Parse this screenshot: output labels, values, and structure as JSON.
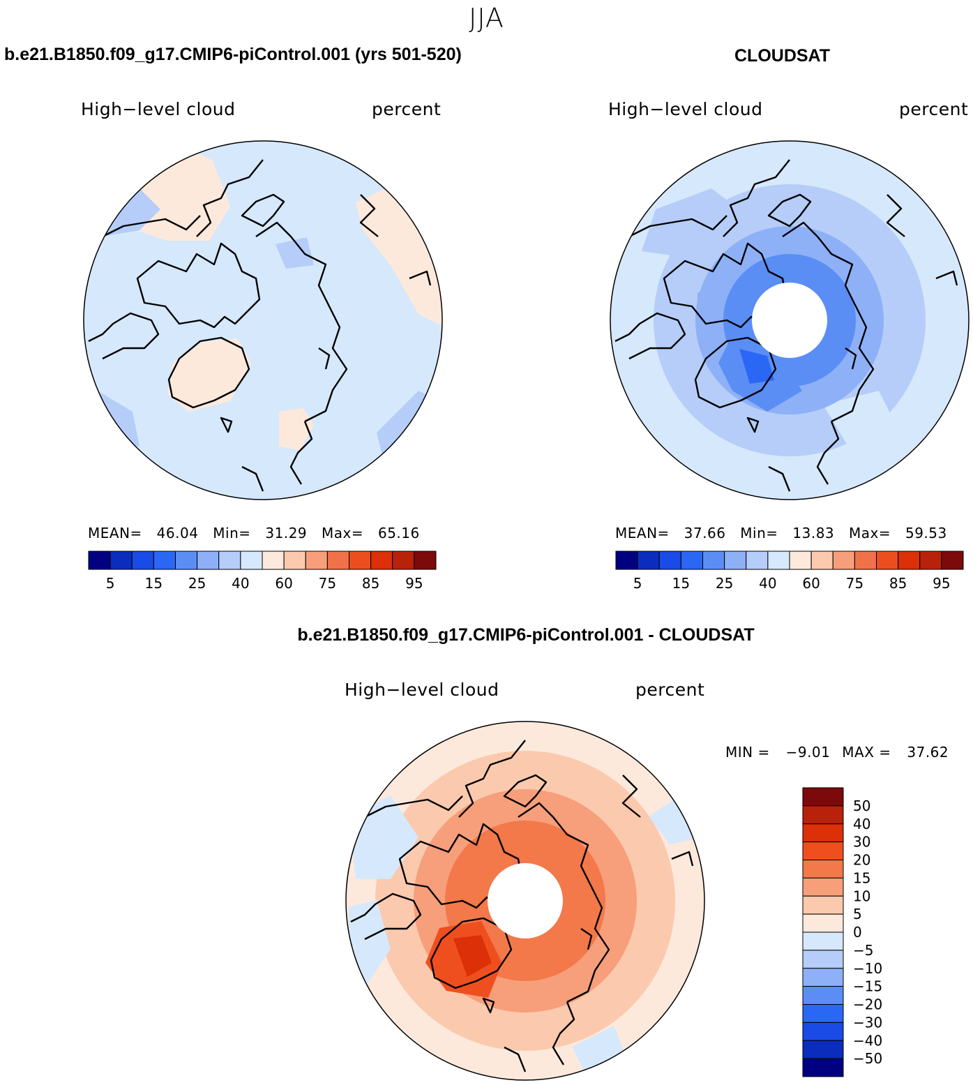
{
  "season": "JJA",
  "panels": {
    "model": {
      "title": "b.e21.B1850.f09_g17.CMIP6-piControl.001 (yrs 501-520)",
      "left_label": "High−level cloud",
      "right_label": "percent",
      "stats": {
        "mean_label": "MEAN=",
        "mean": "46.04",
        "min_label": "Min=",
        "min": "31.29",
        "max_label": "Max=",
        "max": "65.16"
      }
    },
    "obs": {
      "title": "CLOUDSAT",
      "left_label": "High−level cloud",
      "right_label": "percent",
      "stats": {
        "mean_label": "MEAN=",
        "mean": "37.66",
        "min_label": "Min=",
        "min": "13.83",
        "max_label": "Max=",
        "max": "59.53"
      }
    },
    "diff": {
      "title": "b.e21.B1850.f09_g17.CMIP6-piControl.001 - CLOUDSAT",
      "left_label": "High−level cloud",
      "right_label": "percent",
      "minmax": {
        "min_label": "MIN =",
        "min": "−9.01",
        "max_label": "MAX =",
        "max": "37.62"
      }
    }
  },
  "colorbar_abs": {
    "colors": [
      "#000080",
      "#0a2dbe",
      "#1a4be6",
      "#2b67f5",
      "#5a8ef5",
      "#8db0f7",
      "#b5cdf8",
      "#d6e8fb",
      "#fde9dc",
      "#fbc9ad",
      "#f79e7a",
      "#f1724a",
      "#ec4e20",
      "#db3008",
      "#b8220a",
      "#7d0a0a"
    ],
    "ticks": [
      "5",
      "15",
      "25",
      "40",
      "60",
      "75",
      "85",
      "95"
    ]
  },
  "colorbar_diff": {
    "colors": [
      "#7d0a0a",
      "#b8220a",
      "#db3008",
      "#ef4f1e",
      "#f3784a",
      "#f79e7a",
      "#fbc9ad",
      "#fde9dc",
      "#d6e8fb",
      "#b5cdf8",
      "#8db0f7",
      "#5a8ef5",
      "#2b67f5",
      "#1a4be6",
      "#0a2dbe",
      "#000080"
    ],
    "ticks": [
      "50",
      "40",
      "30",
      "20",
      "15",
      "10",
      "5",
      "0",
      "−5",
      "−10",
      "−15",
      "−20",
      "−30",
      "−40",
      "−50"
    ]
  }
}
